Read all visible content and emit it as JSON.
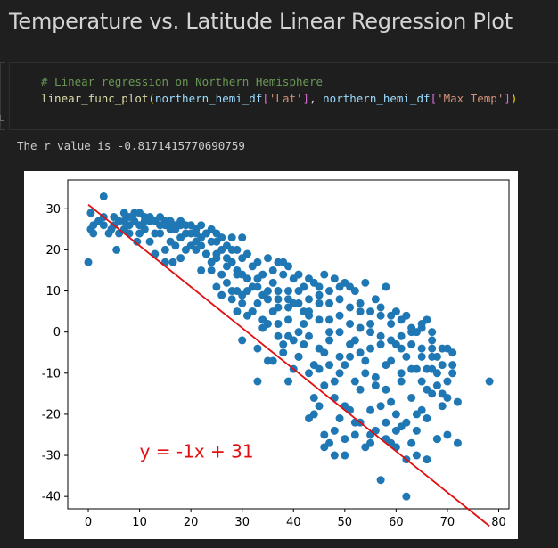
{
  "page_title": "Temperature vs. Latitude Linear Regression Plot",
  "code": {
    "comment": "# Linear regression on Northern Hemisphere",
    "func_name": "linear_func_plot",
    "arg1_var": "northern_hemi_df",
    "arg1_key": "'Lat'",
    "arg2_var": "northern_hemi_df",
    "arg2_key": "'Max Temp'"
  },
  "output": {
    "r_value_text": "The r value is -0.8171415770690759"
  },
  "colors": {
    "points": "#1f77b4",
    "regression_line": "#e01010",
    "equation_text": "#e01010"
  },
  "chart_data": {
    "type": "scatter",
    "title": "",
    "xlabel": "",
    "ylabel": "",
    "xlim": [
      -4,
      82
    ],
    "ylim": [
      -43,
      37
    ],
    "x_ticks": [
      0,
      10,
      20,
      30,
      40,
      50,
      60,
      70,
      80
    ],
    "y_ticks": [
      -40,
      -30,
      -20,
      -10,
      0,
      10,
      20,
      30
    ],
    "grid": false,
    "regression": {
      "slope": -1.0,
      "intercept": 31.0,
      "x_range": [
        0,
        78.2
      ]
    },
    "equation_label": {
      "text": "y = -1x + 31",
      "x": 10,
      "y": -29
    },
    "points": [
      [
        0,
        17
      ],
      [
        0.5,
        29
      ],
      [
        0.5,
        25
      ],
      [
        1,
        24
      ],
      [
        2,
        27
      ],
      [
        3,
        33
      ],
      [
        3,
        26
      ],
      [
        4,
        24
      ],
      [
        4.5,
        25
      ],
      [
        5,
        28
      ],
      [
        5.5,
        20
      ],
      [
        6,
        27
      ],
      [
        6,
        24
      ],
      [
        7,
        25
      ],
      [
        7,
        29
      ],
      [
        8,
        24
      ],
      [
        8,
        26
      ],
      [
        9,
        29
      ],
      [
        9,
        27
      ],
      [
        9.5,
        22
      ],
      [
        10,
        29
      ],
      [
        10,
        26
      ],
      [
        11,
        28
      ],
      [
        11,
        25
      ],
      [
        12,
        22
      ],
      [
        12,
        27
      ],
      [
        13,
        19
      ],
      [
        13,
        24
      ],
      [
        14,
        24
      ],
      [
        14,
        28
      ],
      [
        15,
        17
      ],
      [
        15,
        20
      ],
      [
        15,
        27
      ],
      [
        16,
        22
      ],
      [
        16,
        25
      ],
      [
        16.5,
        17
      ],
      [
        17,
        21
      ],
      [
        17,
        25
      ],
      [
        18,
        18
      ],
      [
        18,
        23
      ],
      [
        18,
        26
      ],
      [
        19,
        20
      ],
      [
        19,
        24
      ],
      [
        20,
        21
      ],
      [
        20,
        26
      ],
      [
        21,
        22
      ],
      [
        21,
        25
      ],
      [
        22,
        15
      ],
      [
        22,
        21
      ],
      [
        22,
        26
      ],
      [
        23,
        19
      ],
      [
        23,
        24
      ],
      [
        24,
        17
      ],
      [
        24,
        22
      ],
      [
        25,
        11
      ],
      [
        25,
        19
      ],
      [
        25,
        24
      ],
      [
        26,
        14
      ],
      [
        26,
        20
      ],
      [
        27,
        12
      ],
      [
        27,
        18
      ],
      [
        28,
        10
      ],
      [
        28,
        17
      ],
      [
        28,
        23
      ],
      [
        29,
        5
      ],
      [
        29,
        10
      ],
      [
        29,
        15
      ],
      [
        30,
        9
      ],
      [
        30,
        14
      ],
      [
        30,
        18
      ],
      [
        31,
        4
      ],
      [
        31,
        10
      ],
      [
        32,
        5
      ],
      [
        32,
        11
      ],
      [
        33,
        13
      ],
      [
        33,
        7
      ],
      [
        34,
        9
      ],
      [
        34,
        3
      ],
      [
        35,
        8
      ],
      [
        35,
        2
      ],
      [
        36,
        5
      ],
      [
        36,
        12
      ],
      [
        37,
        -1
      ],
      [
        37,
        6
      ],
      [
        38,
        -5
      ],
      [
        38,
        17
      ],
      [
        39,
        10
      ],
      [
        39,
        3
      ],
      [
        40,
        -2
      ],
      [
        40,
        7
      ],
      [
        41,
        0
      ],
      [
        41,
        -6
      ],
      [
        42,
        -3
      ],
      [
        42,
        5
      ],
      [
        43,
        -10
      ],
      [
        43,
        4
      ],
      [
        44,
        -8
      ],
      [
        44,
        -16
      ],
      [
        45,
        -18
      ],
      [
        45,
        3
      ],
      [
        46,
        -25
      ],
      [
        46,
        -5
      ],
      [
        47,
        -27
      ],
      [
        47,
        0
      ],
      [
        48,
        -24
      ],
      [
        48,
        -12
      ],
      [
        49,
        -21
      ],
      [
        49,
        0
      ],
      [
        50,
        -18
      ],
      [
        50,
        -30
      ],
      [
        51,
        -19
      ],
      [
        51,
        -3
      ],
      [
        52,
        -25
      ],
      [
        52,
        -12
      ],
      [
        53,
        -22
      ],
      [
        53,
        -5
      ],
      [
        54,
        -28
      ],
      [
        54,
        -10
      ],
      [
        55,
        -19
      ],
      [
        55,
        -27
      ],
      [
        56,
        -24
      ],
      [
        56,
        -13
      ],
      [
        57,
        -36
      ],
      [
        57,
        -18
      ],
      [
        58,
        -22
      ],
      [
        58,
        -8
      ],
      [
        59,
        -27
      ],
      [
        59,
        -17
      ],
      [
        60,
        -28
      ],
      [
        60,
        -20
      ],
      [
        61,
        -23
      ],
      [
        61,
        -12
      ],
      [
        62,
        -40
      ],
      [
        62,
        -31
      ],
      [
        63,
        -27
      ],
      [
        63,
        -16
      ],
      [
        64,
        -30
      ],
      [
        64,
        -20
      ],
      [
        65,
        -19
      ],
      [
        65,
        -6
      ],
      [
        66,
        -31
      ],
      [
        66,
        -9
      ],
      [
        67,
        -15
      ],
      [
        67,
        -2
      ],
      [
        68,
        -26
      ],
      [
        68,
        -13
      ],
      [
        69,
        -15
      ],
      [
        69,
        -8
      ],
      [
        70,
        -4
      ],
      [
        70,
        -12
      ],
      [
        71,
        -5
      ],
      [
        71,
        -10
      ],
      [
        72,
        -27
      ],
      [
        72,
        -17
      ],
      [
        78.2,
        -12
      ],
      [
        1,
        26
      ],
      [
        3,
        28
      ],
      [
        5,
        26
      ],
      [
        7,
        27
      ],
      [
        8,
        28
      ],
      [
        10,
        24
      ],
      [
        12,
        28
      ],
      [
        14,
        26
      ],
      [
        16,
        27
      ],
      [
        18,
        27
      ],
      [
        20,
        24
      ],
      [
        22,
        23
      ],
      [
        24,
        25
      ],
      [
        26,
        23
      ],
      [
        28,
        20
      ],
      [
        30,
        23
      ],
      [
        32,
        16
      ],
      [
        34,
        14
      ],
      [
        36,
        15
      ],
      [
        38,
        14
      ],
      [
        40,
        13
      ],
      [
        42,
        11
      ],
      [
        44,
        12
      ],
      [
        46,
        14
      ],
      [
        48,
        13
      ],
      [
        50,
        12
      ],
      [
        51,
        11
      ],
      [
        52,
        10
      ],
      [
        54,
        12
      ],
      [
        56,
        8
      ],
      [
        58,
        11
      ],
      [
        60,
        5
      ],
      [
        62,
        4
      ],
      [
        64,
        0
      ],
      [
        66,
        3
      ],
      [
        68,
        -6
      ],
      [
        30,
        -2
      ],
      [
        33,
        -4
      ],
      [
        35,
        -7
      ],
      [
        39,
        -12
      ],
      [
        41,
        -6
      ],
      [
        43,
        -1
      ],
      [
        45,
        -9
      ],
      [
        47,
        -8
      ],
      [
        49,
        -10
      ],
      [
        51,
        -6
      ],
      [
        53,
        -14
      ],
      [
        55,
        -4
      ],
      [
        57,
        -3
      ],
      [
        59,
        -7
      ],
      [
        61,
        -10
      ],
      [
        63,
        -3
      ],
      [
        65,
        -12
      ],
      [
        67,
        -4
      ],
      [
        69,
        -18
      ],
      [
        71,
        -8
      ],
      [
        33,
        -12
      ],
      [
        36,
        -7
      ],
      [
        38,
        -3
      ],
      [
        40,
        -9
      ],
      [
        44,
        -20
      ],
      [
        46,
        -13
      ],
      [
        48,
        -16
      ],
      [
        50,
        -8
      ],
      [
        52,
        -2
      ],
      [
        54,
        -7
      ],
      [
        56,
        -11
      ],
      [
        58,
        -14
      ],
      [
        60,
        -3
      ],
      [
        62,
        -6
      ],
      [
        64,
        -9
      ],
      [
        66,
        -14
      ],
      [
        68,
        -10
      ],
      [
        70,
        -16
      ],
      [
        34,
        1
      ],
      [
        37,
        2
      ],
      [
        39,
        -1
      ],
      [
        42,
        2
      ],
      [
        45,
        -4
      ],
      [
        47,
        -2
      ],
      [
        49,
        -6
      ],
      [
        53,
        1
      ],
      [
        55,
        2
      ],
      [
        57,
        4
      ],
      [
        59,
        2
      ],
      [
        61,
        -4
      ],
      [
        63,
        0
      ],
      [
        65,
        1
      ],
      [
        67,
        -6
      ],
      [
        69,
        -4
      ],
      [
        24,
        15
      ],
      [
        26,
        9
      ],
      [
        28,
        8
      ],
      [
        30,
        7
      ],
      [
        32,
        5
      ],
      [
        35,
        8
      ],
      [
        37,
        8
      ],
      [
        39,
        6
      ],
      [
        41,
        7
      ],
      [
        43,
        5
      ],
      [
        45,
        7
      ],
      [
        47,
        3
      ],
      [
        49,
        4
      ],
      [
        51,
        2
      ],
      [
        53,
        5
      ],
      [
        55,
        0
      ],
      [
        57,
        -1
      ],
      [
        59,
        -2
      ],
      [
        61,
        -1
      ],
      [
        63,
        -9
      ],
      [
        65,
        -4
      ],
      [
        67,
        -9
      ],
      [
        21,
        20
      ],
      [
        23,
        19
      ],
      [
        25,
        18
      ],
      [
        27,
        16
      ],
      [
        29,
        14
      ],
      [
        31,
        13
      ],
      [
        33,
        11
      ],
      [
        35,
        10
      ],
      [
        37,
        10
      ],
      [
        39,
        8
      ],
      [
        41,
        10
      ],
      [
        43,
        8
      ],
      [
        45,
        9
      ],
      [
        47,
        7
      ],
      [
        49,
        8
      ],
      [
        51,
        6
      ],
      [
        53,
        7
      ],
      [
        55,
        5
      ],
      [
        57,
        6
      ],
      [
        59,
        4
      ],
      [
        61,
        3
      ],
      [
        63,
        1
      ],
      [
        65,
        2
      ],
      [
        67,
        0
      ],
      [
        43,
        -21
      ],
      [
        46,
        -28
      ],
      [
        48,
        -30
      ],
      [
        50,
        -26
      ],
      [
        52,
        -22
      ],
      [
        55,
        -25
      ],
      [
        58,
        -26
      ],
      [
        60,
        -24
      ],
      [
        62,
        -22
      ],
      [
        64,
        -24
      ],
      [
        66,
        -21
      ],
      [
        68,
        -26
      ],
      [
        70,
        -25
      ],
      [
        11,
        27
      ],
      [
        13,
        27
      ],
      [
        15,
        26
      ],
      [
        17,
        26
      ],
      [
        19,
        26
      ],
      [
        21,
        24
      ],
      [
        23,
        24
      ],
      [
        25,
        22
      ],
      [
        27,
        21
      ],
      [
        29,
        20
      ],
      [
        31,
        19
      ],
      [
        33,
        17
      ],
      [
        35,
        18
      ],
      [
        37,
        17
      ],
      [
        39,
        16
      ],
      [
        41,
        14
      ],
      [
        43,
        13
      ],
      [
        45,
        11
      ],
      [
        47,
        10
      ],
      [
        49,
        11
      ]
    ]
  }
}
